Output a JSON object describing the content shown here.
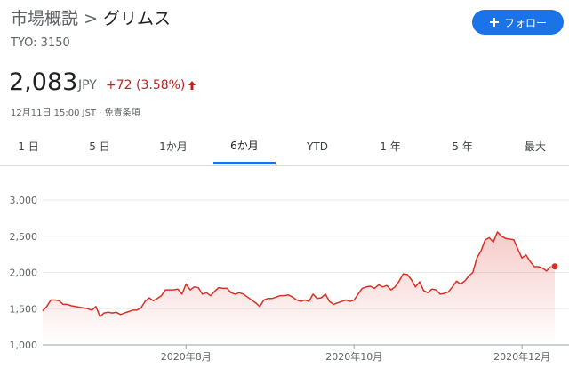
{
  "header": {
    "breadcrumb": "市場概説",
    "separator": ">",
    "title": "グリムス",
    "ticker": "TYO: 3150",
    "follow_button": "フォロー"
  },
  "quote": {
    "price": "2,083",
    "currency": "JPY",
    "change": "+72 (3.58%)",
    "timestamp": "12月11日 15:00 JST",
    "dot": "·",
    "disclaimer": "免責条項"
  },
  "tabs": [
    "1 日",
    "5 日",
    "1か月",
    "6か月",
    "YTD",
    "1 年",
    "5 年",
    "最大"
  ],
  "selected_tab": 3,
  "chart_data": {
    "type": "line",
    "color": "#d93025",
    "grid": true,
    "x": [
      0,
      1,
      2,
      3,
      4,
      5,
      6,
      7,
      8,
      9,
      10,
      11,
      12,
      13,
      14,
      15,
      16,
      17,
      18,
      19,
      20,
      21,
      22,
      23,
      24,
      25,
      26,
      27,
      28,
      29,
      30,
      31,
      32,
      33,
      34,
      35,
      36,
      37,
      38,
      39,
      40,
      41,
      42,
      43,
      44,
      45,
      46,
      47,
      48,
      49,
      50,
      51,
      52,
      53,
      54,
      55,
      56,
      57,
      58,
      59,
      60,
      61,
      62,
      63,
      64,
      65,
      66,
      67,
      68,
      69,
      70,
      71,
      72,
      73,
      74,
      75,
      76,
      77,
      78,
      79,
      80,
      81,
      82,
      83,
      84,
      85,
      86,
      87,
      88,
      89,
      90,
      91,
      92,
      93,
      94,
      95,
      96,
      97,
      98,
      99,
      100,
      101,
      102,
      103,
      104,
      105,
      106,
      107,
      108,
      109,
      110,
      111,
      112,
      113,
      114,
      115,
      116,
      117,
      118,
      119,
      120,
      121,
      122,
      123,
      124,
      125
    ],
    "values": [
      1470,
      1530,
      1620,
      1620,
      1610,
      1560,
      1560,
      1540,
      1530,
      1520,
      1510,
      1500,
      1480,
      1530,
      1390,
      1440,
      1450,
      1440,
      1450,
      1420,
      1440,
      1460,
      1480,
      1480,
      1510,
      1600,
      1650,
      1610,
      1640,
      1680,
      1760,
      1760,
      1760,
      1770,
      1700,
      1840,
      1760,
      1800,
      1790,
      1700,
      1720,
      1680,
      1740,
      1790,
      1780,
      1780,
      1720,
      1700,
      1720,
      1700,
      1660,
      1620,
      1580,
      1530,
      1620,
      1640,
      1640,
      1660,
      1680,
      1680,
      1690,
      1660,
      1620,
      1600,
      1620,
      1600,
      1700,
      1640,
      1650,
      1700,
      1600,
      1560,
      1580,
      1600,
      1620,
      1600,
      1620,
      1700,
      1780,
      1800,
      1810,
      1780,
      1830,
      1800,
      1820,
      1760,
      1800,
      1880,
      1980,
      1970,
      1900,
      1800,
      1870,
      1750,
      1720,
      1770,
      1760,
      1700,
      1710,
      1730,
      1800,
      1880,
      1840,
      1880,
      1950,
      2000,
      2200,
      2300,
      2450,
      2480,
      2420,
      2560,
      2500,
      2470,
      2460,
      2450,
      2320,
      2200,
      2240,
      2150,
      2080,
      2080,
      2060,
      2020,
      2080,
      2083
    ],
    "xlim": [
      0,
      125
    ],
    "xticks": [
      {
        "value": 35,
        "label": "2020年8月"
      },
      {
        "value": 76,
        "label": "2020年10月"
      },
      {
        "value": 117,
        "label": "2020年12月"
      }
    ],
    "ylim": [
      1000,
      3000
    ],
    "yticks": [
      {
        "value": 1000,
        "label": "1,000"
      },
      {
        "value": 1500,
        "label": "1,500"
      },
      {
        "value": 2000,
        "label": "2,000"
      },
      {
        "value": 2500,
        "label": "2,500"
      },
      {
        "value": 3000,
        "label": "3,000"
      }
    ]
  }
}
